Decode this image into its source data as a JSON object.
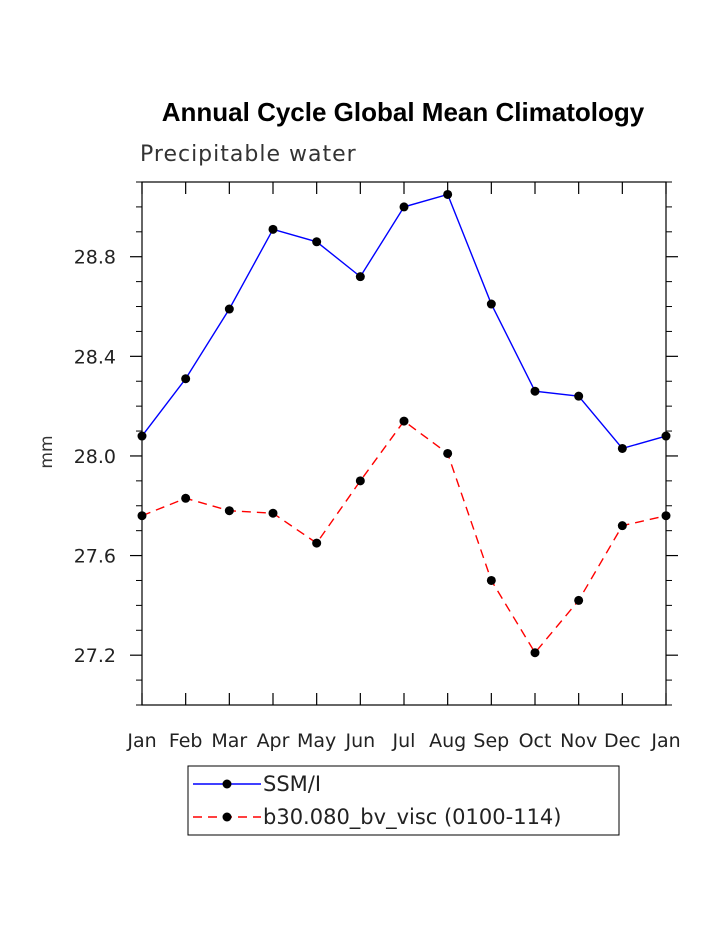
{
  "chart_data": {
    "type": "line",
    "title": "Annual Cycle Global Mean Climatology",
    "subtitle": "Precipitable water",
    "xlabel": "",
    "ylabel": "mm",
    "categories": [
      "Jan",
      "Feb",
      "Mar",
      "Apr",
      "May",
      "Jun",
      "Jul",
      "Aug",
      "Sep",
      "Oct",
      "Nov",
      "Dec",
      "Jan"
    ],
    "ylim": [
      27.0,
      29.1
    ],
    "yticks": [
      27.2,
      27.6,
      28.0,
      28.4,
      28.8
    ],
    "ytick_labels": [
      "27.2",
      "27.6",
      "28.0",
      "28.4",
      "28.8"
    ],
    "grid": false,
    "legend_position": "bottom",
    "series": [
      {
        "name": "SSM/I",
        "color": "#0000ff",
        "dash": "solid",
        "marker": "filled-circle",
        "values": [
          28.08,
          28.31,
          28.59,
          28.91,
          28.86,
          28.72,
          29.0,
          29.05,
          28.61,
          28.26,
          28.24,
          28.03,
          28.08
        ]
      },
      {
        "name": "b30.080_bv_visc (0100-114)",
        "color": "#ff0000",
        "dash": "dashed",
        "marker": "filled-circle",
        "values": [
          27.76,
          27.83,
          27.78,
          27.77,
          27.65,
          27.9,
          28.14,
          28.01,
          27.5,
          27.21,
          27.42,
          27.72,
          27.76
        ]
      }
    ]
  }
}
